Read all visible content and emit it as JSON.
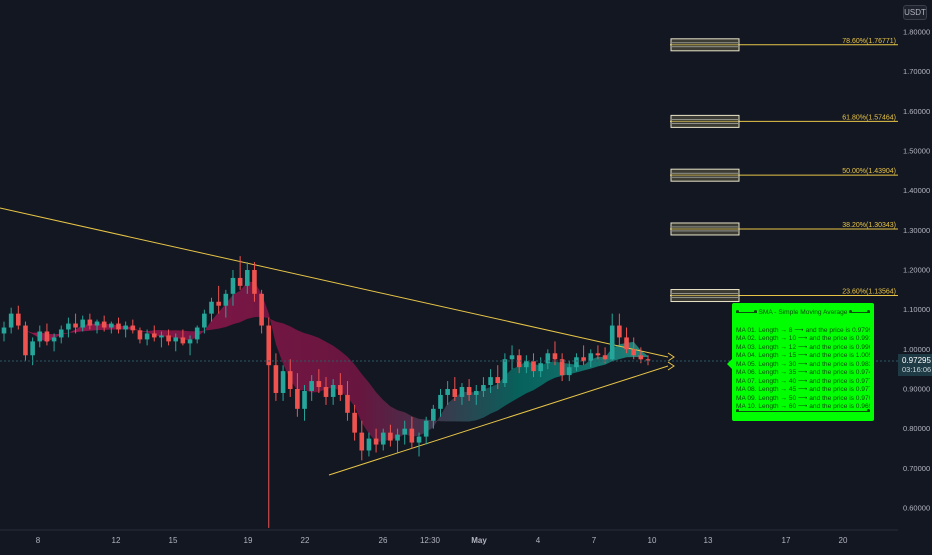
{
  "header": {
    "currency": "USDT"
  },
  "last_price": {
    "value": "0.97295",
    "countdown": "03:16:06"
  },
  "chart_data": {
    "type": "candlestick",
    "y_axis": {
      "range": [
        0.55,
        1.85
      ],
      "ticks": [
        "1.80000",
        "1.70000",
        "1.60000",
        "1.50000",
        "1.40000",
        "1.30000",
        "1.20000",
        "1.10000",
        "1.00000",
        "0.90000",
        "0.80000",
        "0.70000",
        "0.60000"
      ]
    },
    "x_axis": {
      "ticks": [
        "8",
        "12",
        "15",
        "19",
        "22",
        "26",
        "12:30",
        "May",
        "4",
        "7",
        "10",
        "13",
        "17",
        "20"
      ]
    },
    "grid": false,
    "candles_ohlc": [
      [
        1.04,
        1.07,
        1.02,
        1.055
      ],
      [
        1.055,
        1.105,
        1.04,
        1.09
      ],
      [
        1.09,
        1.11,
        1.05,
        1.06
      ],
      [
        1.06,
        1.07,
        0.97,
        0.985
      ],
      [
        0.985,
        1.03,
        0.96,
        1.02
      ],
      [
        1.02,
        1.06,
        1.005,
        1.045
      ],
      [
        1.045,
        1.065,
        1.01,
        1.02
      ],
      [
        1.02,
        1.04,
        0.995,
        1.03
      ],
      [
        1.03,
        1.06,
        1.015,
        1.05
      ],
      [
        1.05,
        1.08,
        1.03,
        1.065
      ],
      [
        1.065,
        1.09,
        1.04,
        1.055
      ],
      [
        1.055,
        1.085,
        1.045,
        1.075
      ],
      [
        1.075,
        1.09,
        1.05,
        1.06
      ],
      [
        1.06,
        1.075,
        1.04,
        1.07
      ],
      [
        1.07,
        1.085,
        1.045,
        1.055
      ],
      [
        1.055,
        1.07,
        1.04,
        1.065
      ],
      [
        1.065,
        1.08,
        1.04,
        1.05
      ],
      [
        1.05,
        1.07,
        1.03,
        1.06
      ],
      [
        1.06,
        1.075,
        1.04,
        1.048
      ],
      [
        1.048,
        1.055,
        1.015,
        1.025
      ],
      [
        1.025,
        1.05,
        1.01,
        1.04
      ],
      [
        1.04,
        1.06,
        1.02,
        1.03
      ],
      [
        1.03,
        1.045,
        1.005,
        1.035
      ],
      [
        1.035,
        1.05,
        1.01,
        1.02
      ],
      [
        1.02,
        1.04,
        0.995,
        1.03
      ],
      [
        1.03,
        1.05,
        1.01,
        1.015
      ],
      [
        1.015,
        1.035,
        0.985,
        1.025
      ],
      [
        1.025,
        1.06,
        1.015,
        1.055
      ],
      [
        1.055,
        1.1,
        1.04,
        1.09
      ],
      [
        1.09,
        1.13,
        1.07,
        1.12
      ],
      [
        1.12,
        1.16,
        1.09,
        1.11
      ],
      [
        1.11,
        1.15,
        1.08,
        1.14
      ],
      [
        1.14,
        1.2,
        1.11,
        1.18
      ],
      [
        1.18,
        1.235,
        1.15,
        1.16
      ],
      [
        1.16,
        1.22,
        1.14,
        1.2
      ],
      [
        1.2,
        1.22,
        1.12,
        1.14
      ],
      [
        1.14,
        1.15,
        1.04,
        1.06
      ],
      [
        1.06,
        1.08,
        0.55,
        0.96
      ],
      [
        0.96,
        0.99,
        0.87,
        0.89
      ],
      [
        0.89,
        0.96,
        0.87,
        0.945
      ],
      [
        0.945,
        0.975,
        0.88,
        0.9
      ],
      [
        0.9,
        0.94,
        0.83,
        0.85
      ],
      [
        0.85,
        0.91,
        0.82,
        0.895
      ],
      [
        0.895,
        0.935,
        0.87,
        0.92
      ],
      [
        0.92,
        0.95,
        0.89,
        0.905
      ],
      [
        0.905,
        0.93,
        0.86,
        0.88
      ],
      [
        0.88,
        0.925,
        0.86,
        0.91
      ],
      [
        0.91,
        0.94,
        0.87,
        0.885
      ],
      [
        0.885,
        0.92,
        0.82,
        0.84
      ],
      [
        0.84,
        0.86,
        0.77,
        0.79
      ],
      [
        0.79,
        0.82,
        0.72,
        0.745
      ],
      [
        0.745,
        0.79,
        0.73,
        0.775
      ],
      [
        0.775,
        0.8,
        0.74,
        0.76
      ],
      [
        0.76,
        0.8,
        0.745,
        0.79
      ],
      [
        0.79,
        0.81,
        0.755,
        0.77
      ],
      [
        0.77,
        0.8,
        0.74,
        0.785
      ],
      [
        0.785,
        0.82,
        0.76,
        0.8
      ],
      [
        0.8,
        0.83,
        0.75,
        0.765
      ],
      [
        0.765,
        0.79,
        0.73,
        0.78
      ],
      [
        0.78,
        0.83,
        0.76,
        0.82
      ],
      [
        0.82,
        0.86,
        0.8,
        0.85
      ],
      [
        0.85,
        0.9,
        0.83,
        0.885
      ],
      [
        0.885,
        0.92,
        0.86,
        0.9
      ],
      [
        0.9,
        0.93,
        0.87,
        0.88
      ],
      [
        0.88,
        0.915,
        0.86,
        0.905
      ],
      [
        0.905,
        0.925,
        0.87,
        0.885
      ],
      [
        0.885,
        0.91,
        0.86,
        0.895
      ],
      [
        0.895,
        0.93,
        0.88,
        0.91
      ],
      [
        0.91,
        0.95,
        0.89,
        0.93
      ],
      [
        0.93,
        0.96,
        0.9,
        0.915
      ],
      [
        0.915,
        0.99,
        0.905,
        0.975
      ],
      [
        0.975,
        1.01,
        0.95,
        0.985
      ],
      [
        0.985,
        1.0,
        0.94,
        0.955
      ],
      [
        0.955,
        0.985,
        0.94,
        0.97
      ],
      [
        0.97,
        0.99,
        0.93,
        0.945
      ],
      [
        0.945,
        0.98,
        0.93,
        0.965
      ],
      [
        0.965,
        1.0,
        0.95,
        0.99
      ],
      [
        0.99,
        1.02,
        0.96,
        0.975
      ],
      [
        0.975,
        0.99,
        0.92,
        0.935
      ],
      [
        0.935,
        0.97,
        0.92,
        0.955
      ],
      [
        0.955,
        0.99,
        0.945,
        0.98
      ],
      [
        0.98,
        1.01,
        0.96,
        0.97
      ],
      [
        0.97,
        1.0,
        0.955,
        0.99
      ],
      [
        0.99,
        1.01,
        0.975,
        0.985
      ],
      [
        0.985,
        1.005,
        0.965,
        0.975
      ],
      [
        0.975,
        1.09,
        0.97,
        1.06
      ],
      [
        1.06,
        1.09,
        1.01,
        1.03
      ],
      [
        1.03,
        1.055,
        0.99,
        1.0
      ],
      [
        1.0,
        1.03,
        0.975,
        0.985
      ],
      [
        0.985,
        1.005,
        0.965,
        0.975
      ],
      [
        0.975,
        0.985,
        0.96,
        0.972
      ]
    ],
    "fib_levels": [
      {
        "label": "78.60%(1.76771)",
        "value": 1.76771
      },
      {
        "label": "61.80%(1.57464)",
        "value": 1.57464
      },
      {
        "label": "50.00%(1.43904)",
        "value": 1.43904
      },
      {
        "label": "38.20%(1.30343)",
        "value": 1.30343
      },
      {
        "label": "23.60%(1.13564)",
        "value": 1.13564
      }
    ],
    "colors": {
      "up": "#26a69a",
      "down": "#ef5350",
      "trendline": "#e8c547",
      "fib": "#e8c547",
      "legend": "#00ff00"
    }
  },
  "legend": {
    "title": "SMA - Simple Moving Average",
    "rows": [
      "MA 01. Length → 8 ⟶ and the price is 0.97998",
      "MA 02. Length → 10 ⟶ and the price is 0.99165",
      "MA 03. Length → 12 ⟶ and the price is 0.99695",
      "MA 04. Length → 15 ⟶ and the price is 1.00515",
      "MA 05. Length → 30 ⟶ and the price is 0.98347",
      "MA 06. Length → 35 ⟶ and the price is 0.97409",
      "MA 07. Length → 40 ⟶ and the price is 0.97789",
      "MA 08. Length → 45 ⟶ and the price is 0.97797",
      "MA 09. Length → 50 ⟶ and the price is 0.97601",
      "MA 10. Length → 60 ⟶ and the price is 0.96942"
    ]
  }
}
